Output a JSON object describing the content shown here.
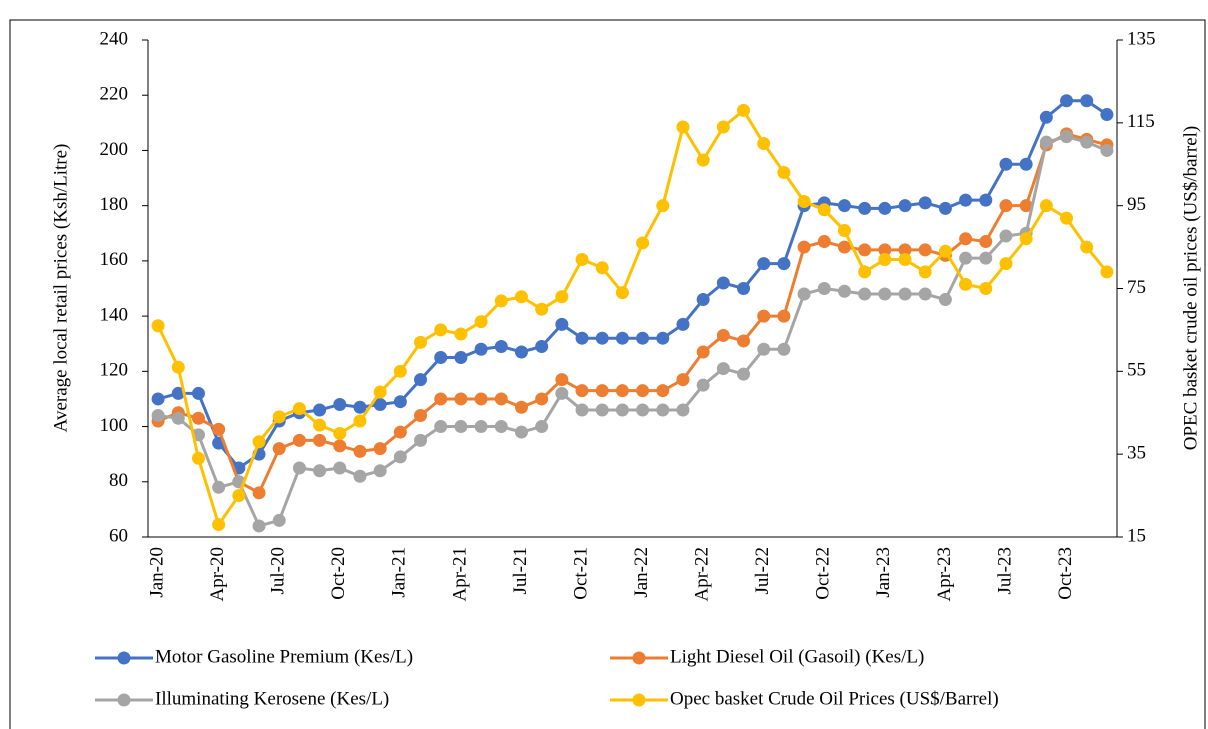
{
  "chart_data": {
    "type": "line",
    "categories": [
      "Jan-20",
      null,
      null,
      "Apr-20",
      null,
      null,
      "Jul-20",
      null,
      null,
      "Oct-20",
      null,
      null,
      "Jan-21",
      null,
      null,
      "Apr-21",
      null,
      null,
      "Jul-21",
      null,
      null,
      "Oct-21",
      null,
      null,
      "Jan-22",
      null,
      null,
      "Apr-22",
      null,
      null,
      "Jul-22",
      null,
      null,
      "Oct-22",
      null,
      null,
      "Jan-23",
      null,
      null,
      "Apr-23",
      null,
      null,
      "Jul-23",
      null,
      null,
      "Oct-23",
      null,
      null
    ],
    "series": [
      {
        "name": "Motor Gasoline Premium (Kes/L)",
        "color": "#4472c4",
        "values": [
          110,
          112,
          112,
          94,
          85,
          90,
          102,
          105,
          106,
          108,
          107,
          108,
          109,
          117,
          125,
          125,
          128,
          129,
          127,
          129,
          137,
          132,
          132,
          132,
          132,
          132,
          137,
          146,
          152,
          150,
          159,
          159,
          180,
          181,
          180,
          179,
          179,
          180,
          181,
          179,
          182,
          182,
          195,
          195,
          212,
          218,
          218,
          213
        ]
      },
      {
        "name": "Light Diesel Oil (Gasoil) (Kes/L)",
        "color": "#ed7d31",
        "values": [
          102,
          105,
          103,
          99,
          80,
          76,
          92,
          95,
          95,
          93,
          91,
          92,
          98,
          104,
          110,
          110,
          110,
          110,
          107,
          110,
          117,
          113,
          113,
          113,
          113,
          113,
          117,
          127,
          133,
          131,
          140,
          140,
          165,
          167,
          165,
          164,
          164,
          164,
          164,
          162,
          168,
          167,
          180,
          180,
          202,
          206,
          204,
          202
        ]
      },
      {
        "name": "Illuminating Kerosene (Kes/L)",
        "color": "#a5a5a5",
        "values": [
          104,
          103,
          97,
          78,
          80,
          64,
          66,
          85,
          84,
          85,
          82,
          84,
          89,
          95,
          100,
          100,
          100,
          100,
          98,
          100,
          112,
          106,
          106,
          106,
          106,
          106,
          106,
          115,
          121,
          119,
          128,
          128,
          148,
          150,
          149,
          148,
          148,
          148,
          148,
          146,
          161,
          161,
          169,
          170,
          203,
          205,
          203,
          200
        ]
      },
      {
        "name": "Opec  basket Crude Oil Prices (US$/Barrel)",
        "color": "#ffc000",
        "axis": "y2",
        "values": [
          66,
          56,
          34,
          18,
          25,
          38,
          44,
          46,
          42,
          40,
          43,
          50,
          55,
          62,
          65,
          64,
          67,
          72,
          73,
          70,
          73,
          82,
          80,
          74,
          86,
          95,
          114,
          106,
          114,
          118,
          110,
          103,
          96,
          94,
          89,
          79,
          82,
          82,
          79,
          84,
          76,
          75,
          81,
          87,
          95,
          92,
          85,
          79
        ]
      }
    ],
    "ylabel": "Average local retail prices (Ksh/Litre)",
    "y2label": "OPEC basket crude oil prices (US$/barrel)",
    "ylim": [
      60,
      240
    ],
    "yticks": [
      60,
      80,
      100,
      120,
      140,
      160,
      180,
      200,
      220,
      240
    ],
    "y2lim": [
      15,
      135
    ],
    "y2ticks": [
      15,
      35,
      55,
      75,
      95,
      115,
      135
    ],
    "grid": false,
    "legend": "bottom"
  }
}
